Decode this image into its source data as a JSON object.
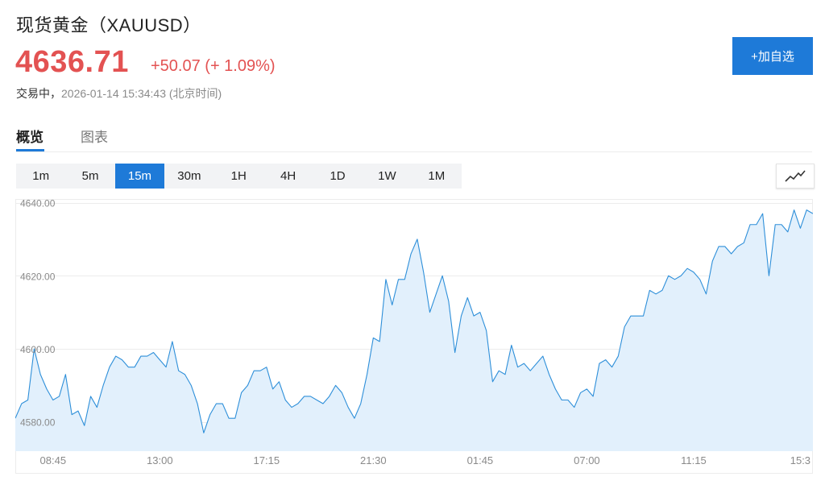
{
  "header": {
    "title": "现货黄金（XAUUSD）",
    "price": "4636.71",
    "change": "+50.07 (+ 1.09%)",
    "status": "交易中，",
    "timestamp": "2026-01-14 15:34:43 (北京时间)",
    "add_button": "+加自选"
  },
  "tabs": [
    {
      "label": "概览",
      "active": true
    },
    {
      "label": "图表",
      "active": false
    }
  ],
  "intervals": [
    {
      "label": "1m",
      "active": false
    },
    {
      "label": "5m",
      "active": false
    },
    {
      "label": "15m",
      "active": true
    },
    {
      "label": "30m",
      "active": false
    },
    {
      "label": "1H",
      "active": false
    },
    {
      "label": "4H",
      "active": false
    },
    {
      "label": "1D",
      "active": false
    },
    {
      "label": "1W",
      "active": false
    },
    {
      "label": "1M",
      "active": false
    }
  ],
  "chart_type_icon": "line-chart-icon",
  "colors": {
    "accent": "#1e7ad8",
    "up": "#e35252",
    "line": "#2e8fd9",
    "area": "#e2f0fc"
  },
  "chart_data": {
    "type": "area",
    "ylim": [
      4572,
      4641
    ],
    "yticks": [
      {
        "label": "4640.00",
        "value": 4640
      },
      {
        "label": "4620.00",
        "value": 4620
      },
      {
        "label": "4600.00",
        "value": 4600
      },
      {
        "label": "4580.00",
        "value": 4580
      }
    ],
    "xticks": [
      {
        "label": "08:45",
        "index": 6
      },
      {
        "label": "13:00",
        "index": 23
      },
      {
        "label": "17:15",
        "index": 40
      },
      {
        "label": "21:30",
        "index": 57
      },
      {
        "label": "01:45",
        "index": 74
      },
      {
        "label": "07:00",
        "index": 91
      },
      {
        "label": "11:15",
        "index": 108
      },
      {
        "label": "15:3",
        "index": 125
      }
    ],
    "values": [
      4581,
      4585,
      4586,
      4600,
      4593,
      4589,
      4586,
      4587,
      4593,
      4582,
      4583,
      4579,
      4587,
      4584,
      4590,
      4595,
      4598,
      4597,
      4595,
      4595,
      4598,
      4598,
      4599,
      4597,
      4595,
      4602,
      4594,
      4593,
      4590,
      4585,
      4577,
      4582,
      4585,
      4585,
      4581,
      4581,
      4588,
      4590,
      4594,
      4594,
      4595,
      4589,
      4591,
      4586,
      4584,
      4585,
      4587,
      4587,
      4586,
      4585,
      4587,
      4590,
      4588,
      4584,
      4581,
      4585,
      4593,
      4603,
      4602,
      4619,
      4612,
      4619,
      4619,
      4626,
      4630,
      4621,
      4610,
      4615,
      4620,
      4613,
      4599,
      4609,
      4614,
      4609,
      4610,
      4605,
      4591,
      4594,
      4593,
      4601,
      4595,
      4596,
      4594,
      4596,
      4598,
      4593,
      4589,
      4586,
      4586,
      4584,
      4588,
      4589,
      4587,
      4596,
      4597,
      4595,
      4598,
      4606,
      4609,
      4609,
      4609,
      4616,
      4615,
      4616,
      4620,
      4619,
      4620,
      4622,
      4621,
      4619,
      4615,
      4624,
      4628,
      4628,
      4626,
      4628,
      4629,
      4634,
      4634,
      4637,
      4620,
      4634,
      4634,
      4632,
      4638,
      4633,
      4638,
      4637
    ]
  }
}
